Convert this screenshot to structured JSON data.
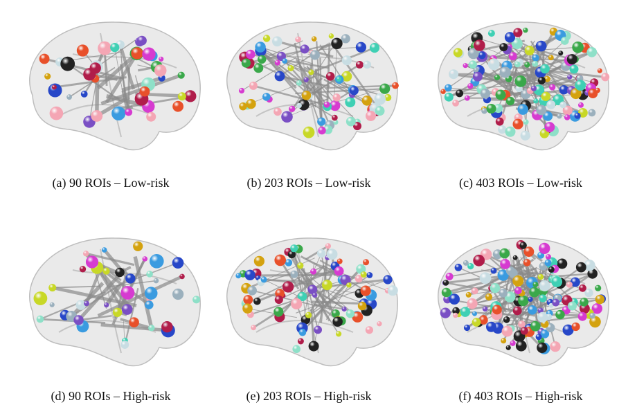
{
  "panels": [
    {
      "caption": "(a) 90 ROIs – Low-risk"
    },
    {
      "caption": "(b) 203 ROIs – Low-risk"
    },
    {
      "caption": "(c) 403 ROIs – Low-risk"
    },
    {
      "caption": "(d) 90 ROIs – High-risk"
    },
    {
      "caption": "(e) 203 ROIs – High-risk"
    },
    {
      "caption": "(f) 403 ROIs – High-risk"
    }
  ]
}
